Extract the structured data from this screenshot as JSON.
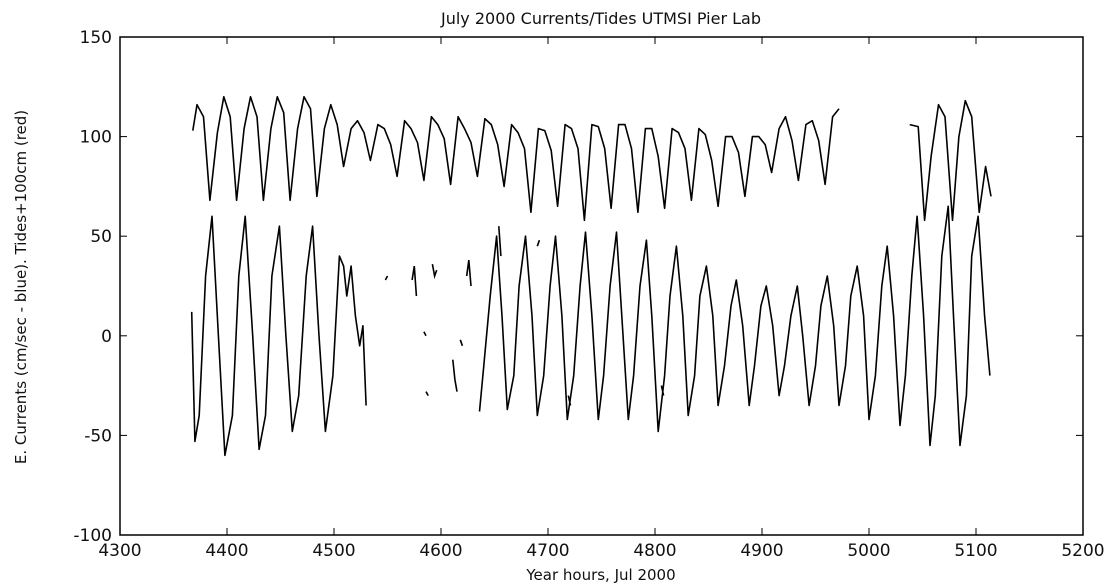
{
  "chart_data": {
    "type": "line",
    "title": "July 2000 Currents/Tides UTMSI Pier Lab",
    "xlabel": "Year hours, Jul 2000",
    "ylabel": "E. Currents (cm/sec - blue). Tides+100cm (red)",
    "xlim": [
      4300,
      5200
    ],
    "ylim": [
      -100,
      150
    ],
    "xticks": [
      4300,
      4400,
      4500,
      4600,
      4700,
      4800,
      4900,
      5000,
      5100,
      5200
    ],
    "yticks": [
      -100,
      -50,
      0,
      50,
      100,
      150
    ],
    "grid": false,
    "line_color": "#000000",
    "series": [
      {
        "segments": [
          {
            "x": [
              4368,
              4372,
              4378,
              4384,
              4391,
              4397,
              4403,
              4409,
              4416,
              4422,
              4428,
              4434,
              4441,
              4447,
              4453,
              4459,
              4466,
              4472,
              4478,
              4484,
              4491,
              4497,
              4503,
              4509,
              4516,
              4522,
              4528,
              4534,
              4541,
              4547,
              4553,
              4559,
              4566,
              4572,
              4578,
              4584,
              4591,
              4597,
              4603,
              4609,
              4616,
              4622,
              4628,
              4634,
              4641,
              4647,
              4653,
              4659,
              4666,
              4672,
              4678,
              4684,
              4691,
              4697,
              4703,
              4709,
              4716,
              4722,
              4728,
              4734,
              4741,
              4747,
              4753,
              4759,
              4766,
              4772,
              4778,
              4784,
              4791,
              4797,
              4803,
              4809,
              4816,
              4822,
              4828,
              4834,
              4841,
              4847,
              4853,
              4859,
              4866,
              4872,
              4878,
              4884,
              4891,
              4897,
              4903,
              4909,
              4916,
              4922,
              4928,
              4934,
              4941,
              4947,
              4953,
              4959,
              4966,
              4972
            ],
            "y": [
              103,
              116,
              110,
              68,
              102,
              120,
              110,
              68,
              104,
              120,
              110,
              68,
              104,
              120,
              112,
              68,
              104,
              120,
              114,
              70,
              104,
              116,
              106,
              85,
              104,
              108,
              102,
              88,
              106,
              104,
              96,
              80,
              108,
              104,
              97,
              78,
              110,
              106,
              99,
              76,
              110,
              104,
              97,
              80,
              109,
              106,
              96,
              75,
              106,
              102,
              94,
              62,
              104,
              103,
              93,
              65,
              106,
              104,
              94,
              58,
              106,
              105,
              94,
              64,
              106,
              106,
              94,
              62,
              104,
              104,
              90,
              64,
              104,
              102,
              94,
              68,
              104,
              101,
              88,
              65,
              100,
              100,
              92,
              70,
              100,
              100,
              96,
              82,
              104,
              110,
              98,
              78,
              106,
              108,
              98,
              76,
              110,
              114
            ]
          },
          {
            "x": [
              5038,
              5046,
              5052,
              5058,
              5065,
              5071,
              5078,
              5084,
              5090,
              5096,
              5103,
              5109,
              5114
            ],
            "y": [
              106,
              105,
              58,
              90,
              116,
              110,
              58,
              100,
              118,
              110,
              62,
              85,
              70
            ]
          },
          {
            "x": [
              4367,
              4370,
              4374,
              4380,
              4386,
              4392,
              4398,
              4405,
              4411,
              4417,
              4424,
              4430,
              4436,
              4442,
              4449,
              4455,
              4461,
              4467,
              4474,
              4480,
              4486,
              4492,
              4499,
              4505,
              4509,
              4512,
              4516,
              4520,
              4524,
              4527,
              4530
            ],
            "y": [
              12,
              -53,
              -40,
              30,
              60,
              0,
              -60,
              -40,
              30,
              60,
              0,
              -57,
              -40,
              30,
              55,
              0,
              -48,
              -30,
              30,
              55,
              0,
              -48,
              -20,
              40,
              35,
              20,
              35,
              10,
              -5,
              5,
              -35
            ]
          },
          {
            "x": [
              4636,
              4640,
              4646,
              4652,
              4657,
              4662,
              4668,
              4673,
              4679,
              4685,
              4690,
              4696,
              4702,
              4707,
              4713,
              4718,
              4724,
              4730,
              4735,
              4741,
              4747,
              4752,
              4758,
              4764,
              4769,
              4775,
              4780,
              4786,
              4792,
              4797,
              4803,
              4809,
              4814,
              4820,
              4826,
              4831,
              4837,
              4842,
              4848,
              4854,
              4859,
              4865,
              4871,
              4876,
              4882,
              4888,
              4893,
              4899,
              4904,
              4910,
              4916,
              4921,
              4927,
              4933,
              4938,
              4944,
              4950,
              4955,
              4961,
              4967,
              4972,
              4978,
              4983,
              4989,
              4995,
              5000,
              5006,
              5012,
              5017,
              5023,
              5029,
              5034,
              5040,
              5045,
              5051,
              5057,
              5062,
              5068,
              5074,
              5079,
              5085,
              5091,
              5096,
              5102,
              5108,
              5113
            ],
            "y": [
              -38,
              -15,
              20,
              50,
              10,
              -37,
              -20,
              25,
              50,
              10,
              -40,
              -20,
              25,
              50,
              10,
              -42,
              -20,
              25,
              52,
              10,
              -42,
              -20,
              25,
              52,
              10,
              -42,
              -20,
              25,
              48,
              10,
              -48,
              -20,
              20,
              45,
              10,
              -40,
              -20,
              20,
              35,
              10,
              -35,
              -15,
              15,
              28,
              5,
              -35,
              -15,
              15,
              25,
              5,
              -30,
              -15,
              10,
              25,
              0,
              -35,
              -15,
              15,
              30,
              5,
              -35,
              -15,
              20,
              35,
              10,
              -42,
              -20,
              25,
              45,
              10,
              -45,
              -20,
              30,
              60,
              10,
              -55,
              -30,
              40,
              65,
              10,
              -55,
              -30,
              40,
              60,
              10,
              -20
            ]
          }
        ],
        "fragments": [
          {
            "x": [
              4548,
              4550
            ],
            "y": [
              28,
              30
            ]
          },
          {
            "x": [
              4573,
              4575,
              4577
            ],
            "y": [
              28,
              35,
              20
            ]
          },
          {
            "x": [
              4584,
              4586
            ],
            "y": [
              2,
              0
            ]
          },
          {
            "x": [
              4586,
              4588
            ],
            "y": [
              -28,
              -30
            ]
          },
          {
            "x": [
              4592,
              4594,
              4596
            ],
            "y": [
              36,
              30,
              33
            ]
          },
          {
            "x": [
              4611,
              4613,
              4615
            ],
            "y": [
              -12,
              -22,
              -28
            ]
          },
          {
            "x": [
              4618,
              4620
            ],
            "y": [
              -2,
              -5
            ]
          },
          {
            "x": [
              4624,
              4626,
              4628
            ],
            "y": [
              30,
              38,
              25
            ]
          },
          {
            "x": [
              4654,
              4656
            ],
            "y": [
              55,
              40
            ]
          },
          {
            "x": [
              4690,
              4692
            ],
            "y": [
              45,
              48
            ]
          },
          {
            "x": [
              4719,
              4721
            ],
            "y": [
              -30,
              -35
            ]
          },
          {
            "x": [
              4806,
              4808
            ],
            "y": [
              -25,
              -30
            ]
          }
        ]
      }
    ]
  }
}
